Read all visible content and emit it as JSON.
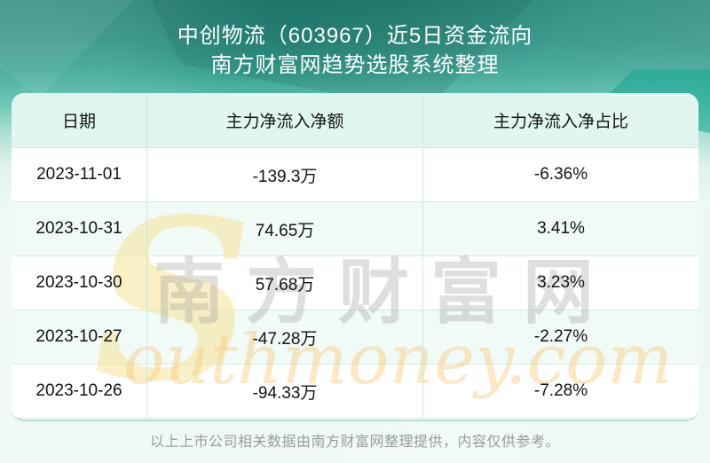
{
  "header": {
    "title_line1": "中创物流（603967）近5日资金流向",
    "title_line2": "南方财富网趋势选股系统整理"
  },
  "table": {
    "columns": [
      "日期",
      "主力净流入净额",
      "主力净流入净占比"
    ],
    "rows": [
      {
        "date": "2023-11-01",
        "amount": "-139.3万",
        "ratio": "-6.36%"
      },
      {
        "date": "2023-10-31",
        "amount": "74.65万",
        "ratio": "3.41%"
      },
      {
        "date": "2023-10-30",
        "amount": "57.68万",
        "ratio": "3.23%"
      },
      {
        "date": "2023-10-27",
        "amount": "-47.28万",
        "ratio": "-2.27%"
      },
      {
        "date": "2023-10-26",
        "amount": "-94.33万",
        "ratio": "-7.28%"
      }
    ]
  },
  "watermark": {
    "big_s": "S",
    "cn": "南方财富网",
    "script": "outhmoney.com"
  },
  "footer": {
    "disclaimer": "以上上市公司相关数据由南方财富网整理提供，内容仅供参考。"
  },
  "colors": {
    "header_gradient_top": "#26897c",
    "page_bottom": "#eef9f6",
    "table_head_bg": "#e2f6f1",
    "row_stripe_bg": "#f0faf7",
    "grid_line": "#c9e7e1",
    "title_text": "#ffffff",
    "cell_text": "#131313",
    "disclaimer_text": "#9b9b9b",
    "watermark_yellow": "rgba(250,205,120,0.45)",
    "watermark_gray": "rgba(150,150,150,0.30)"
  },
  "chart_data": {
    "type": "table",
    "title": "中创物流（603967）近5日资金流向",
    "subtitle": "南方财富网趋势选股系统整理",
    "columns": [
      "日期",
      "主力净流入净额",
      "主力净流入净占比"
    ],
    "rows": [
      [
        "2023-11-01",
        "-139.3万",
        "-6.36%"
      ],
      [
        "2023-10-31",
        "74.65万",
        "3.41%"
      ],
      [
        "2023-10-30",
        "57.68万",
        "3.23%"
      ],
      [
        "2023-10-27",
        "-47.28万",
        "-2.27%"
      ],
      [
        "2023-10-26",
        "-94.33万",
        "-7.28%"
      ]
    ],
    "net_inflow_wan": [
      -139.3,
      74.65,
      57.68,
      -47.28,
      -94.33
    ],
    "net_inflow_pct": [
      -6.36,
      3.41,
      3.23,
      -2.27,
      -7.28
    ]
  }
}
